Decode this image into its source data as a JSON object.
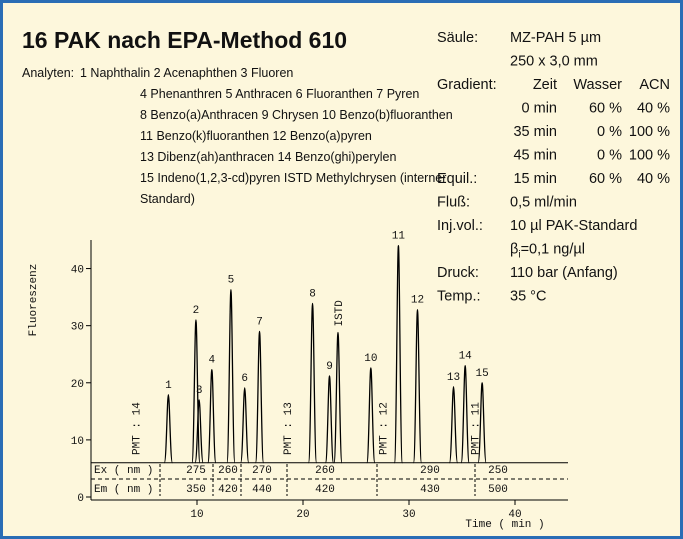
{
  "header": {
    "title": "16 PAK nach EPA-Method 610"
  },
  "analytes": {
    "label": "Analyten:",
    "lines": [
      "1 Naphthalin 2 Acenaphthen 3 Fluoren",
      "4 Phenanthren 5 Anthracen 6 Fluoranthen 7 Pyren",
      "8 Benzo(a)Anthracen 9 Chrysen 10 Benzo(b)fluoranthen",
      "11 Benzo(k)fluoranthen 12 Benzo(a)pyren",
      "13 Dibenz(ah)anthracen 14 Benzo(ghi)perylen",
      "15 Indeno(1,2,3-cd)pyren ISTD Methylchrysen (interner",
      "Standard)"
    ]
  },
  "conditions": [
    {
      "label": "Säule:",
      "value": "MZ-PAH 5 µm"
    },
    {
      "value": "250 x 3,0 mm"
    },
    {
      "label": "Gradient:",
      "cols": [
        "Zeit",
        "Wasser",
        "ACN"
      ]
    },
    {
      "cols": [
        "0 min",
        "60 %",
        "40 %"
      ]
    },
    {
      "cols": [
        "35 min",
        "0 %",
        "100 %"
      ]
    },
    {
      "cols": [
        "45 min",
        "0 %",
        "100 %"
      ]
    },
    {
      "label": "Equil.:",
      "cols": [
        "15 min",
        "60 %",
        "40 %"
      ]
    },
    {
      "label": "Fluß:",
      "value": "0,5 ml/min"
    },
    {
      "label": "Inj.vol.:",
      "value": "10 µl PAK-Standard"
    },
    {
      "value": "β",
      "sub": "i",
      "rest": "=0,1 ng/µl"
    },
    {
      "label": "Druck:",
      "value": "110 bar (Anfang)"
    },
    {
      "label": "Temp.:",
      "value": "35 °C"
    }
  ],
  "chart_data": {
    "type": "chromatogram",
    "y_label": "Fluoreszenz",
    "x_label": "Time ( min )",
    "xlim": [
      0,
      45
    ],
    "xticks": [
      10,
      20,
      30,
      40
    ],
    "ylim": [
      0,
      45
    ],
    "yticks": [
      0,
      10,
      20,
      30,
      40
    ],
    "baseline": 6,
    "color": "#000000",
    "peaks": {
      "labels": [
        "1",
        "2",
        "3",
        "4",
        "5",
        "6",
        "7",
        "8",
        "9",
        "ISTD",
        "10",
        "11",
        "12",
        "13",
        "14",
        "15"
      ],
      "x": [
        7.3,
        9.9,
        10.2,
        11.4,
        13.2,
        14.5,
        15.9,
        20.9,
        22.5,
        23.3,
        26.4,
        29.0,
        30.8,
        34.2,
        35.3,
        36.9
      ],
      "values": [
        17.9,
        31,
        17,
        22.3,
        36.3,
        19.1,
        29,
        33.9,
        21.2,
        28.8,
        22.6,
        44,
        32.8,
        19.3,
        23,
        20
      ]
    },
    "pmt": {
      "labels": [
        "PMT : 14",
        "PMT : 13",
        "PMT : 12",
        "PMT : 11"
      ],
      "x": [
        4.2,
        18.5,
        27.5,
        36.2
      ]
    },
    "ex_label": "Ex ( nm )",
    "em_label": "Em ( nm )",
    "ex": [
      275,
      260,
      270,
      260,
      290,
      250
    ],
    "em": [
      350,
      420,
      440,
      420,
      430,
      500
    ]
  }
}
